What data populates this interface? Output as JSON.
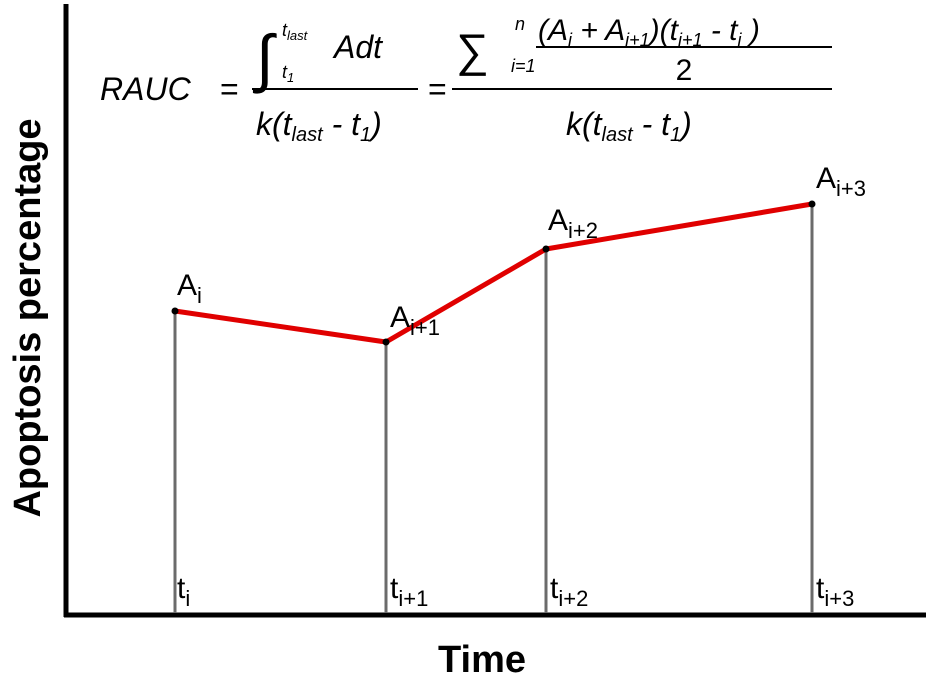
{
  "axes": {
    "x_title": "Time",
    "y_title": "Apoptosis percentage"
  },
  "formula": {
    "lhs": "RAUC",
    "eq": "=",
    "integral_upper": "t",
    "integral_upper_sub": "last",
    "integral_lower": "t",
    "integral_lower_sub": "1",
    "integrand": "Adt",
    "denom_k": "k(t",
    "denom_last": "last",
    "denom_minus": " - t",
    "denom_one": "1",
    "denom_close": ")",
    "sum_upper": "n",
    "sum_lower": "i=1",
    "numer_part1": "(A",
    "numer_sub_i": "i",
    "numer_part2": " + A",
    "numer_sub_i1": "i+1",
    "numer_part3": ")(t",
    "numer_sub_t_i1": "i+1",
    "numer_part4": " - t",
    "numer_sub_t_i": "i",
    "numer_part5": " )",
    "two": "2"
  },
  "points": [
    {
      "a_base": "A",
      "a_sub": "i",
      "t_base": "t",
      "t_sub": "i"
    },
    {
      "a_base": "A",
      "a_sub": "i+1",
      "t_base": "t",
      "t_sub": "i+1"
    },
    {
      "a_base": "A",
      "a_sub": "i+2",
      "t_base": "t",
      "t_sub": "i+2"
    },
    {
      "a_base": "A",
      "a_sub": "i+3",
      "t_base": "t",
      "t_sub": "i+3"
    }
  ],
  "colors": {
    "curve": "#e00000",
    "drop_lines": "#6b6b6b",
    "axes": "#000000"
  }
}
